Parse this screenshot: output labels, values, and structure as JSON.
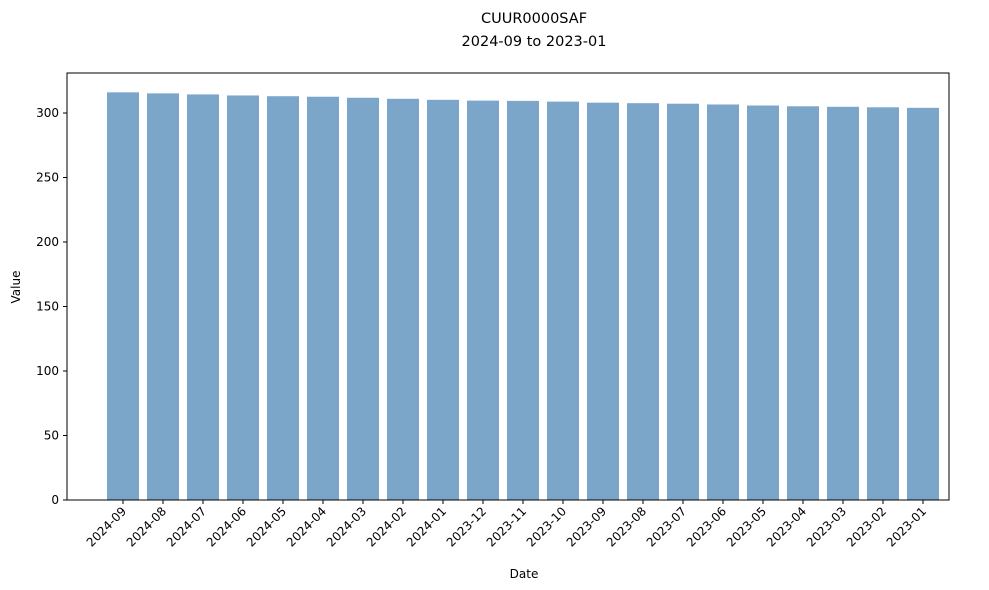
{
  "chart_data": {
    "type": "bar",
    "title": "CUUR0000SAF",
    "subtitle": "2024-09 to 2023-01",
    "xlabel": "Date",
    "ylabel": "Value",
    "ylim": [
      0,
      331
    ],
    "yticks": [
      0,
      50,
      100,
      150,
      200,
      250,
      300
    ],
    "grid": false,
    "bar_color": "#7ba6ca",
    "categories": [
      "2024-09",
      "2024-08",
      "2024-07",
      "2024-06",
      "2024-05",
      "2024-04",
      "2024-03",
      "2024-02",
      "2024-01",
      "2023-12",
      "2023-11",
      "2023-10",
      "2023-09",
      "2023-08",
      "2023-07",
      "2023-06",
      "2023-05",
      "2023-04",
      "2023-03",
      "2023-02",
      "2023-01"
    ],
    "values": [
      316.0,
      315.2,
      314.4,
      313.6,
      313.0,
      312.6,
      311.8,
      311.0,
      310.2,
      309.6,
      309.4,
      308.8,
      308.0,
      307.6,
      307.2,
      306.6,
      305.8,
      305.2,
      304.8,
      304.4,
      304.0
    ]
  }
}
